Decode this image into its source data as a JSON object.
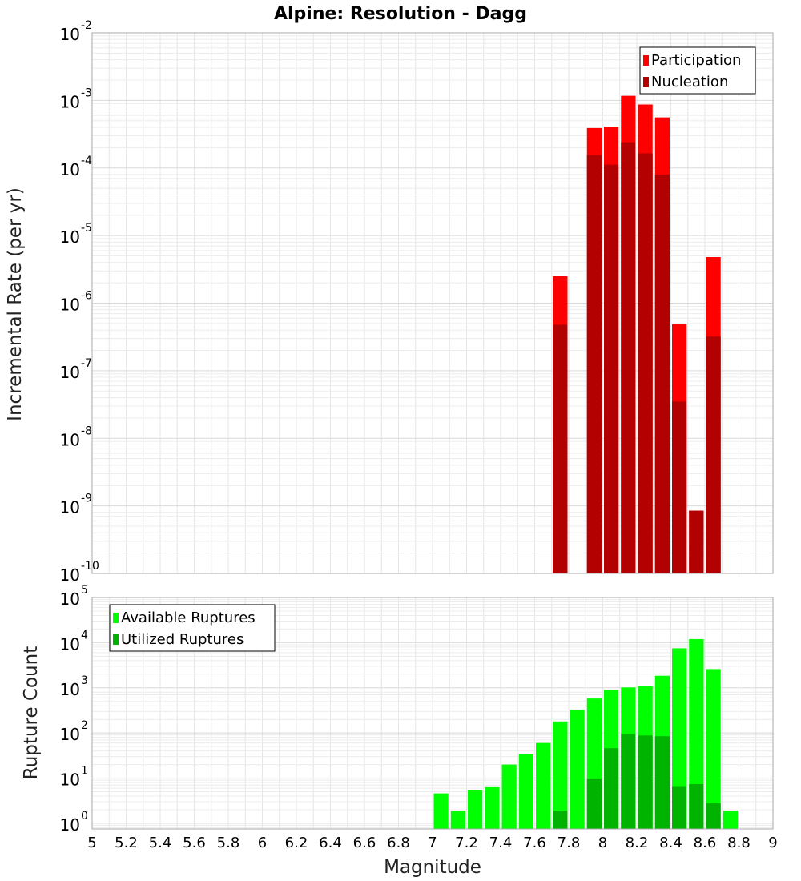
{
  "chart_data": [
    {
      "type": "bar",
      "title": "Alpine: Resolution - Dagg",
      "xlabel": "Magnitude",
      "ylabel": "Incremental Rate (per yr)",
      "y_scale": "log",
      "xlim": [
        5,
        9
      ],
      "ylim": [
        1e-10,
        0.01
      ],
      "y_ticks": [
        {
          "base": "10",
          "exp": "-10"
        },
        {
          "base": "10",
          "exp": "-9"
        },
        {
          "base": "10",
          "exp": "-8"
        },
        {
          "base": "10",
          "exp": "-7"
        },
        {
          "base": "10",
          "exp": "-6"
        },
        {
          "base": "10",
          "exp": "-5"
        },
        {
          "base": "10",
          "exp": "-4"
        },
        {
          "base": "10",
          "exp": "-3"
        },
        {
          "base": "10",
          "exp": "-2"
        }
      ],
      "grid": true,
      "legend_position": "top-right",
      "x": [
        7.75,
        7.95,
        8.05,
        8.15,
        8.25,
        8.35,
        8.45,
        8.55,
        8.65
      ],
      "series": [
        {
          "name": "Participation",
          "color": "#ff0000",
          "values": [
            2.5e-06,
            0.00039,
            0.00041,
            0.00117,
            0.00087,
            0.00056,
            4.9e-07,
            8.5e-10,
            4.8e-06
          ]
        },
        {
          "name": "Nucleation",
          "color": "#b30000",
          "values": [
            4.8e-07,
            0.000155,
            0.000112,
            0.00024,
            0.000165,
            8e-05,
            3.5e-08,
            8.5e-10,
            3.2e-07
          ]
        }
      ]
    },
    {
      "type": "bar",
      "xlabel": "Magnitude",
      "ylabel": "Rupture Count",
      "y_scale": "log",
      "xlim": [
        5,
        9
      ],
      "ylim": [
        0.75,
        100000
      ],
      "y_ticks": [
        {
          "base": "10",
          "exp": "0"
        },
        {
          "base": "10",
          "exp": "1"
        },
        {
          "base": "10",
          "exp": "2"
        },
        {
          "base": "10",
          "exp": "3"
        },
        {
          "base": "10",
          "exp": "4"
        },
        {
          "base": "10",
          "exp": "5"
        }
      ],
      "x_ticks": [
        "5",
        "5.2",
        "5.4",
        "5.6",
        "5.8",
        "6",
        "6.2",
        "6.4",
        "6.6",
        "6.8",
        "7",
        "7.2",
        "7.4",
        "7.6",
        "7.8",
        "8",
        "8.2",
        "8.4",
        "8.6",
        "8.8",
        "9"
      ],
      "grid": true,
      "legend_position": "top-left",
      "x": [
        7.05,
        7.15,
        7.25,
        7.35,
        7.45,
        7.55,
        7.65,
        7.75,
        7.85,
        7.95,
        8.05,
        8.15,
        8.25,
        8.35,
        8.45,
        8.55,
        8.65,
        8.75
      ],
      "series": [
        {
          "name": "Available Ruptures",
          "color": "#00ff00",
          "values": [
            4.6,
            1.9,
            5.5,
            6.3,
            20,
            34,
            60,
            180,
            330,
            580,
            900,
            1020,
            1080,
            1850,
            7500,
            12000,
            2600,
            1.9
          ]
        },
        {
          "name": "Utilized Ruptures",
          "color": "#00b300",
          "values": [
            0,
            0,
            0,
            0,
            0,
            0,
            0,
            1.9,
            0,
            9.5,
            46,
            95,
            88,
            85,
            6.4,
            7.4,
            2.8,
            0
          ]
        }
      ]
    }
  ]
}
